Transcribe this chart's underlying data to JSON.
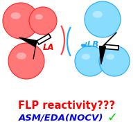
{
  "bg_color": "#ffffff",
  "red_sphere_fill": "#ff7777",
  "red_sphere_edge": "#ff2222",
  "blue_sphere_fill": "#88ddff",
  "blue_sphere_edge": "#22aaff",
  "arc_color_red": "#ff4444",
  "arc_color_blue": "#22aaff",
  "text1": "FLP reactivity???",
  "text2": "ASM/EDA(NOCV)",
  "text1_color": "#ff0000",
  "text2_color": "#0000ee",
  "check_color": "#00cc00",
  "la_label": "LA",
  "lb_label": ":LB",
  "la_label_color": "#ff0000",
  "lb_label_color": "#22aaff"
}
